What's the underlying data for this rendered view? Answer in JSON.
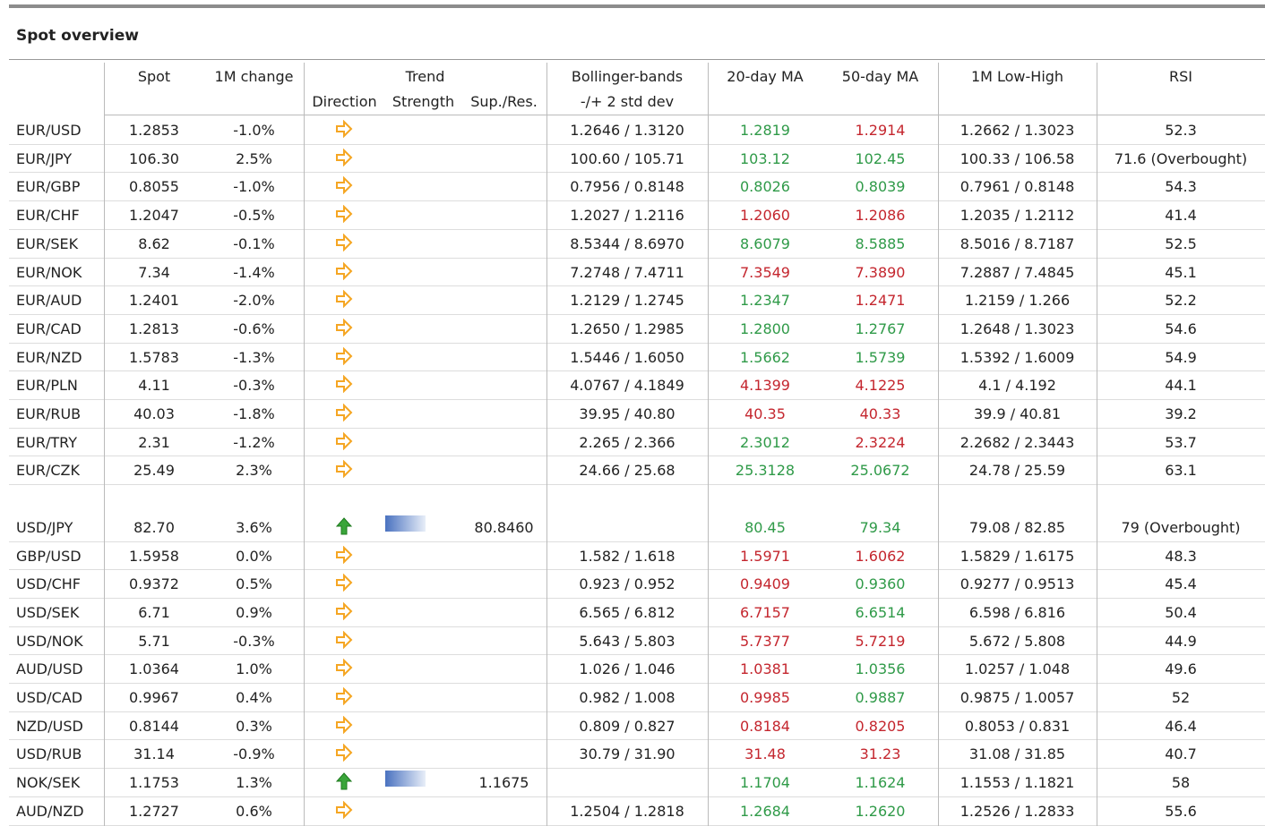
{
  "title": "Spot overview",
  "header": {
    "pair": "",
    "spot": "Spot",
    "change": "1M change",
    "trend": "Trend",
    "direction": "Direction",
    "strength": "Strength",
    "sup_res": "Sup./Res.",
    "bollinger": "Bollinger-bands",
    "bollinger_sub": "-/+ 2 std dev",
    "ma20": "20-day MA",
    "ma50": "50-day MA",
    "low_high": "1M Low-High",
    "rsi": "RSI"
  },
  "groups": [
    {
      "rows": [
        {
          "pair": "EUR/USD",
          "spot": "1.2853",
          "change": "-1.0%",
          "direction": "right",
          "bollinger": "1.2646 / 1.3120",
          "ma20": {
            "text": "1.2819",
            "color": "green"
          },
          "ma50": {
            "text": "1.2914",
            "color": "red"
          },
          "low_high": "1.2662 / 1.3023",
          "rsi": "52.3"
        },
        {
          "pair": "EUR/JPY",
          "spot": "106.30",
          "change": "2.5%",
          "direction": "right",
          "bollinger": "100.60 / 105.71",
          "ma20": {
            "text": "103.12",
            "color": "green"
          },
          "ma50": {
            "text": "102.45",
            "color": "green"
          },
          "low_high": "100.33 / 106.58",
          "rsi": "71.6 (Overbought)"
        },
        {
          "pair": "EUR/GBP",
          "spot": "0.8055",
          "change": "-1.0%",
          "direction": "right",
          "bollinger": "0.7956 / 0.8148",
          "ma20": {
            "text": "0.8026",
            "color": "green"
          },
          "ma50": {
            "text": "0.8039",
            "color": "green"
          },
          "low_high": "0.7961 / 0.8148",
          "rsi": "54.3"
        },
        {
          "pair": "EUR/CHF",
          "spot": "1.2047",
          "change": "-0.5%",
          "direction": "right",
          "bollinger": "1.2027 / 1.2116",
          "ma20": {
            "text": "1.2060",
            "color": "red"
          },
          "ma50": {
            "text": "1.2086",
            "color": "red"
          },
          "low_high": "1.2035 / 1.2112",
          "rsi": "41.4"
        },
        {
          "pair": "EUR/SEK",
          "spot": "8.62",
          "change": "-0.1%",
          "direction": "right",
          "bollinger": "8.5344 / 8.6970",
          "ma20": {
            "text": "8.6079",
            "color": "green"
          },
          "ma50": {
            "text": "8.5885",
            "color": "green"
          },
          "low_high": "8.5016 / 8.7187",
          "rsi": "52.5"
        },
        {
          "pair": "EUR/NOK",
          "spot": "7.34",
          "change": "-1.4%",
          "direction": "right",
          "bollinger": "7.2748 / 7.4711",
          "ma20": {
            "text": "7.3549",
            "color": "red"
          },
          "ma50": {
            "text": "7.3890",
            "color": "red"
          },
          "low_high": "7.2887 / 7.4845",
          "rsi": "45.1"
        },
        {
          "pair": "EUR/AUD",
          "spot": "1.2401",
          "change": "-2.0%",
          "direction": "right",
          "bollinger": "1.2129 / 1.2745",
          "ma20": {
            "text": "1.2347",
            "color": "green"
          },
          "ma50": {
            "text": "1.2471",
            "color": "red"
          },
          "low_high": "1.2159 / 1.266",
          "rsi": "52.2"
        },
        {
          "pair": "EUR/CAD",
          "spot": "1.2813",
          "change": "-0.6%",
          "direction": "right",
          "bollinger": "1.2650 / 1.2985",
          "ma20": {
            "text": "1.2800",
            "color": "green"
          },
          "ma50": {
            "text": "1.2767",
            "color": "green"
          },
          "low_high": "1.2648 / 1.3023",
          "rsi": "54.6"
        },
        {
          "pair": "EUR/NZD",
          "spot": "1.5783",
          "change": "-1.3%",
          "direction": "right",
          "bollinger": "1.5446 / 1.6050",
          "ma20": {
            "text": "1.5662",
            "color": "green"
          },
          "ma50": {
            "text": "1.5739",
            "color": "green"
          },
          "low_high": "1.5392 / 1.6009",
          "rsi": "54.9"
        },
        {
          "pair": "EUR/PLN",
          "spot": "4.11",
          "change": "-0.3%",
          "direction": "right",
          "bollinger": "4.0767 / 4.1849",
          "ma20": {
            "text": "4.1399",
            "color": "red"
          },
          "ma50": {
            "text": "4.1225",
            "color": "red"
          },
          "low_high": "4.1 / 4.192",
          "rsi": "44.1"
        },
        {
          "pair": "EUR/RUB",
          "spot": "40.03",
          "change": "-1.8%",
          "direction": "right",
          "bollinger": "39.95 / 40.80",
          "ma20": {
            "text": "40.35",
            "color": "red"
          },
          "ma50": {
            "text": "40.33",
            "color": "red"
          },
          "low_high": "39.9 / 40.81",
          "rsi": "39.2"
        },
        {
          "pair": "EUR/TRY",
          "spot": "2.31",
          "change": "-1.2%",
          "direction": "right",
          "bollinger": "2.265 / 2.366",
          "ma20": {
            "text": "2.3012",
            "color": "green"
          },
          "ma50": {
            "text": "2.3224",
            "color": "red"
          },
          "low_high": "2.2682 / 2.3443",
          "rsi": "53.7"
        },
        {
          "pair": "EUR/CZK",
          "spot": "25.49",
          "change": "2.3%",
          "direction": "right",
          "bollinger": "24.66 / 25.68",
          "ma20": {
            "text": "25.3128",
            "color": "green"
          },
          "ma50": {
            "text": "25.0672",
            "color": "green"
          },
          "low_high": "24.78 / 25.59",
          "rsi": "63.1"
        }
      ]
    },
    {
      "rows": [
        {
          "pair": "USD/JPY",
          "spot": "82.70",
          "change": "3.6%",
          "direction": "up",
          "strength_bar": true,
          "sup_res": "80.8460",
          "ma20": {
            "text": "80.45",
            "color": "green"
          },
          "ma50": {
            "text": "79.34",
            "color": "green"
          },
          "low_high": "79.08 / 82.85",
          "rsi": "79 (Overbought)"
        },
        {
          "pair": "GBP/USD",
          "spot": "1.5958",
          "change": "0.0%",
          "direction": "right",
          "bollinger": "1.582 / 1.618",
          "ma20": {
            "text": "1.5971",
            "color": "red"
          },
          "ma50": {
            "text": "1.6062",
            "color": "red"
          },
          "low_high": "1.5829 / 1.6175",
          "rsi": "48.3"
        },
        {
          "pair": "USD/CHF",
          "spot": "0.9372",
          "change": "0.5%",
          "direction": "right",
          "bollinger": "0.923 / 0.952",
          "ma20": {
            "text": "0.9409",
            "color": "red"
          },
          "ma50": {
            "text": "0.9360",
            "color": "green"
          },
          "low_high": "0.9277 / 0.9513",
          "rsi": "45.4"
        },
        {
          "pair": "USD/SEK",
          "spot": "6.71",
          "change": "0.9%",
          "direction": "right",
          "bollinger": "6.565 / 6.812",
          "ma20": {
            "text": "6.7157",
            "color": "red"
          },
          "ma50": {
            "text": "6.6514",
            "color": "green"
          },
          "low_high": "6.598 / 6.816",
          "rsi": "50.4"
        },
        {
          "pair": "USD/NOK",
          "spot": "5.71",
          "change": "-0.3%",
          "direction": "right",
          "bollinger": "5.643 / 5.803",
          "ma20": {
            "text": "5.7377",
            "color": "red"
          },
          "ma50": {
            "text": "5.7219",
            "color": "red"
          },
          "low_high": "5.672 / 5.808",
          "rsi": "44.9"
        },
        {
          "pair": "AUD/USD",
          "spot": "1.0364",
          "change": "1.0%",
          "direction": "right",
          "bollinger": "1.026 / 1.046",
          "ma20": {
            "text": "1.0381",
            "color": "red"
          },
          "ma50": {
            "text": "1.0356",
            "color": "green"
          },
          "low_high": "1.0257 / 1.048",
          "rsi": "49.6"
        },
        {
          "pair": "USD/CAD",
          "spot": "0.9967",
          "change": "0.4%",
          "direction": "right",
          "bollinger": "0.982 / 1.008",
          "ma20": {
            "text": "0.9985",
            "color": "red"
          },
          "ma50": {
            "text": "0.9887",
            "color": "green"
          },
          "low_high": "0.9875 / 1.0057",
          "rsi": "52"
        },
        {
          "pair": "NZD/USD",
          "spot": "0.8144",
          "change": "0.3%",
          "direction": "right",
          "bollinger": "0.809 / 0.827",
          "ma20": {
            "text": "0.8184",
            "color": "red"
          },
          "ma50": {
            "text": "0.8205",
            "color": "red"
          },
          "low_high": "0.8053 / 0.831",
          "rsi": "46.4"
        },
        {
          "pair": "USD/RUB",
          "spot": "31.14",
          "change": "-0.9%",
          "direction": "right",
          "bollinger": "30.79 / 31.90",
          "ma20": {
            "text": "31.48",
            "color": "red"
          },
          "ma50": {
            "text": "31.23",
            "color": "red"
          },
          "low_high": "31.08 / 31.85",
          "rsi": "40.7"
        },
        {
          "pair": "NOK/SEK",
          "spot": "1.1753",
          "change": "1.3%",
          "direction": "up",
          "strength_bar": true,
          "sup_res": "1.1675",
          "ma20": {
            "text": "1.1704",
            "color": "green"
          },
          "ma50": {
            "text": "1.1624",
            "color": "green"
          },
          "low_high": "1.1553 / 1.1821",
          "rsi": "58"
        },
        {
          "pair": "AUD/NZD",
          "spot": "1.2727",
          "change": "0.6%",
          "direction": "right",
          "bollinger": "1.2504 / 1.2818",
          "ma20": {
            "text": "1.2684",
            "color": "green"
          },
          "ma50": {
            "text": "1.2620",
            "color": "green"
          },
          "low_high": "1.2526 / 1.2833",
          "rsi": "55.6"
        }
      ]
    }
  ]
}
